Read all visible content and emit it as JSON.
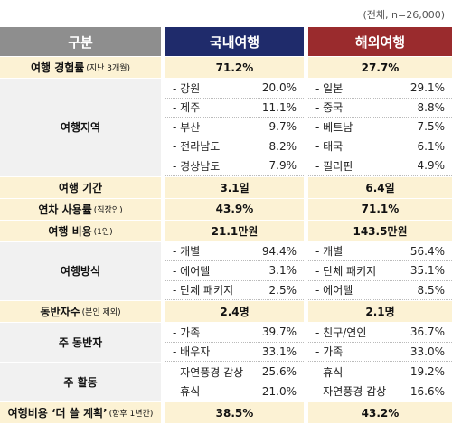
{
  "note": "(전체, n=26,000)",
  "header": [
    "구분",
    "국내여행",
    "해외여행"
  ],
  "rows": [
    {
      "label": "여행 경험률",
      "note": "(지난 3개월)",
      "domestic": "71.2%",
      "overseas": "27.7%"
    },
    {
      "label": "여행지역",
      "domestic": [
        {
          "item": "강원",
          "value": "20.0%"
        },
        {
          "item": "제주",
          "value": "11.1%"
        },
        {
          "item": "부산",
          "value": "9.7%"
        },
        {
          "item": "전라남도",
          "value": "8.2%"
        },
        {
          "item": "경상남도",
          "value": "7.9%"
        }
      ],
      "overseas": [
        {
          "item": "일본",
          "value": "29.1%"
        },
        {
          "item": "중국",
          "value": "8.8%"
        },
        {
          "item": "베트남",
          "value": "7.5%"
        },
        {
          "item": "태국",
          "value": "6.1%"
        },
        {
          "item": "필리핀",
          "value": "4.9%"
        }
      ]
    },
    {
      "label": "여행 기간",
      "domestic": "3.1일",
      "overseas": "6.4일"
    },
    {
      "label": "연차 사용률",
      "note": "(직장인)",
      "domestic": "43.9%",
      "overseas": "71.1%"
    },
    {
      "label": "여행 비용",
      "note": "(1인)",
      "domestic": "21.1만원",
      "overseas": "143.5만원"
    },
    {
      "label": "여행방식",
      "domestic": [
        {
          "item": "개별",
          "value": "94.4%"
        },
        {
          "item": "에어텔",
          "value": "3.1%"
        },
        {
          "item": "단체 패키지",
          "value": "2.5%"
        }
      ],
      "overseas": [
        {
          "item": "개별",
          "value": "56.4%"
        },
        {
          "item": "단체 패키지",
          "value": "35.1%"
        },
        {
          "item": "에어텔",
          "value": "8.5%"
        }
      ]
    },
    {
      "label": "동반자수",
      "note": "(본인 제외)",
      "domestic": "2.4명",
      "overseas": "2.1명"
    },
    {
      "label": "주 동반자",
      "domestic": [
        {
          "item": "가족",
          "value": "39.7%"
        },
        {
          "item": "배우자",
          "value": "33.1%"
        }
      ],
      "overseas": [
        {
          "item": "친구/연인",
          "value": "36.7%"
        },
        {
          "item": "가족",
          "value": "33.0%"
        }
      ]
    },
    {
      "label": "주 활동",
      "domestic": [
        {
          "item": "자연풍경 감상",
          "value": "25.6%"
        },
        {
          "item": "휴식",
          "value": "21.0%"
        }
      ],
      "overseas": [
        {
          "item": "휴식",
          "value": "19.2%"
        },
        {
          "item": "자연풍경 감상",
          "value": "16.6%"
        }
      ]
    },
    {
      "label": "여행비용 ‘더 쓸 계획’",
      "note": "(향후 1년간)",
      "domestic": "38.5%",
      "overseas": "43.2%"
    }
  ]
}
